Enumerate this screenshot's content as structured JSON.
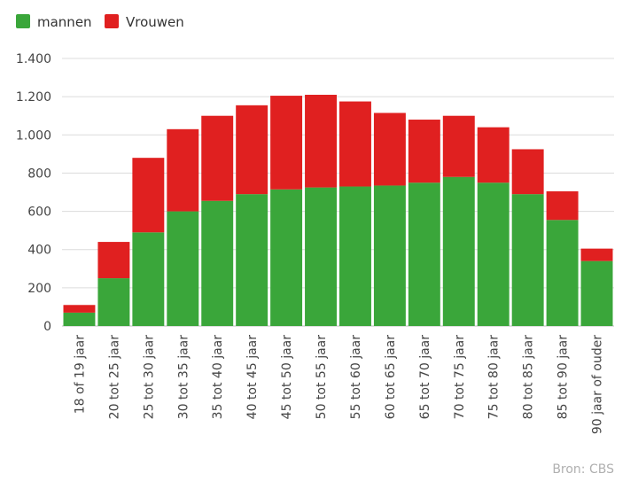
{
  "chart_data": {
    "type": "bar",
    "stacked": true,
    "categories": [
      "18 of 19 jaar",
      "20 tot 25 jaar",
      "25 tot 30 jaar",
      "30 tot 35 jaar",
      "35 tot 40 jaar",
      "40 tot 45 jaar",
      "45 tot 50 jaar",
      "50 tot 55 jaar",
      "55 tot 60 jaar",
      "60 tot 65 jaar",
      "65 tot 70 jaar",
      "70 tot 75 jaar",
      "75 tot 80 jaar",
      "80 tot 85 jaar",
      "85 tot 90 jaar",
      "90 jaar of ouder"
    ],
    "series": [
      {
        "name": "mannen",
        "color": "#3aa63a",
        "values": [
          70,
          250,
          490,
          600,
          655,
          690,
          715,
          725,
          730,
          735,
          750,
          780,
          750,
          690,
          555,
          340
        ]
      },
      {
        "name": "Vrouwen",
        "color": "#e02020",
        "values": [
          40,
          190,
          390,
          430,
          445,
          465,
          490,
          485,
          445,
          380,
          330,
          320,
          290,
          235,
          150,
          65
        ]
      }
    ],
    "ylim": [
      0,
      1400
    ],
    "yticks": [
      0,
      200,
      400,
      600,
      800,
      1000,
      1200,
      1400
    ],
    "ytick_labels": [
      "0",
      "200",
      "400",
      "600",
      "800",
      "1.000",
      "1.200",
      "1.400"
    ],
    "grid": true,
    "legend": "top-left",
    "source": "Bron: CBS"
  }
}
